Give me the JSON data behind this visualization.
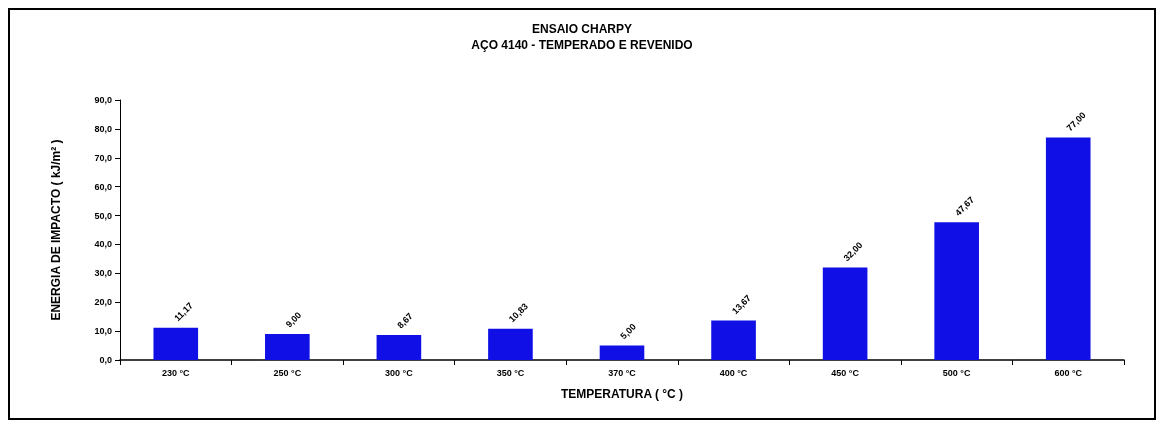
{
  "chart_data": {
    "type": "bar",
    "title": "ENSAIO CHARPY",
    "subtitle": "AÇO 4140 - TEMPERADO E REVENIDO",
    "xlabel": "TEMPERATURA ( °C )",
    "ylabel": "ENERGIA DE IMPACTO ( kJ/m² )",
    "categories": [
      "230 °C",
      "250 °C",
      "300 °C",
      "350 °C",
      "370 °C",
      "400 °C",
      "450 °C",
      "500 °C",
      "600 °C"
    ],
    "values": [
      11.17,
      9.0,
      8.67,
      10.83,
      5.0,
      13.67,
      32.0,
      47.67,
      77.0
    ],
    "value_labels": [
      "11,17",
      "9,00",
      "8,67",
      "10,83",
      "5,00",
      "13,67",
      "32,00",
      "47,67",
      "77,00"
    ],
    "color": "#1010e6",
    "ylim": [
      0,
      90
    ],
    "yticks": [
      {
        "value": 0,
        "label": "0,0"
      },
      {
        "value": 10,
        "label": "10,0"
      },
      {
        "value": 20,
        "label": "20,0"
      },
      {
        "value": 30,
        "label": "30,0"
      },
      {
        "value": 40,
        "label": "40,0"
      },
      {
        "value": 50,
        "label": "50,0"
      },
      {
        "value": 60,
        "label": "60,0"
      },
      {
        "value": 70,
        "label": "70,0"
      },
      {
        "value": 80,
        "label": "80,0"
      },
      {
        "value": 90,
        "label": "90,0"
      }
    ],
    "grid": false
  }
}
